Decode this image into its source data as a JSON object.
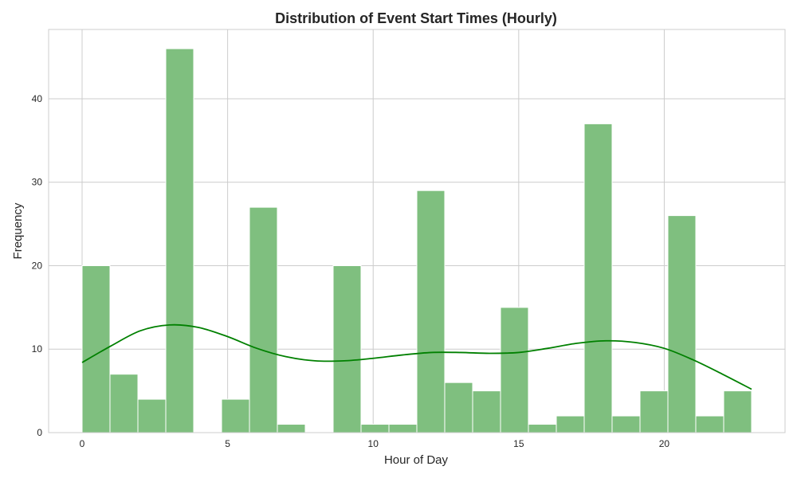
{
  "chart_data": {
    "type": "bar",
    "subtype": "histogram",
    "title": "Distribution of Event Start Times (Hourly)",
    "xlabel": "Hour of Day",
    "ylabel": "Frequency",
    "xlim": [
      -1.15,
      24.15
    ],
    "ylim": [
      0,
      48.3
    ],
    "xticks": [
      0,
      5,
      10,
      15,
      20
    ],
    "yticks": [
      0,
      10,
      20,
      30,
      40
    ],
    "grid": true,
    "bin_edges": [
      0,
      0.958,
      1.917,
      2.875,
      3.833,
      4.792,
      5.75,
      6.708,
      7.667,
      8.625,
      9.583,
      10.542,
      11.5,
      12.458,
      13.417,
      14.375,
      15.333,
      16.292,
      17.25,
      18.208,
      19.167,
      20.125,
      21.083,
      22.042,
      23
    ],
    "counts": [
      20,
      7,
      4,
      46,
      0,
      4,
      27,
      1,
      0,
      20,
      1,
      1,
      29,
      6,
      5,
      15,
      1,
      2,
      37,
      2,
      5,
      26,
      2,
      5
    ],
    "kde": {
      "x": [
        0,
        1,
        2,
        3,
        4,
        5,
        6,
        7,
        8,
        9,
        10,
        11,
        12,
        13,
        14,
        15,
        16,
        17,
        18,
        19,
        20,
        21,
        22,
        23
      ],
      "y": [
        8.4,
        10.4,
        12.2,
        12.9,
        12.6,
        11.5,
        10.1,
        9.1,
        8.6,
        8.6,
        8.9,
        9.3,
        9.6,
        9.6,
        9.5,
        9.6,
        10.1,
        10.7,
        11.0,
        10.8,
        10.1,
        8.7,
        7.0,
        5.2
      ]
    },
    "colors": {
      "bar_fill": "#7fbf7f",
      "bar_edge": "#ffffff",
      "kde_line": "#008000",
      "grid": "#cccccc",
      "frame": "#cccccc"
    }
  }
}
